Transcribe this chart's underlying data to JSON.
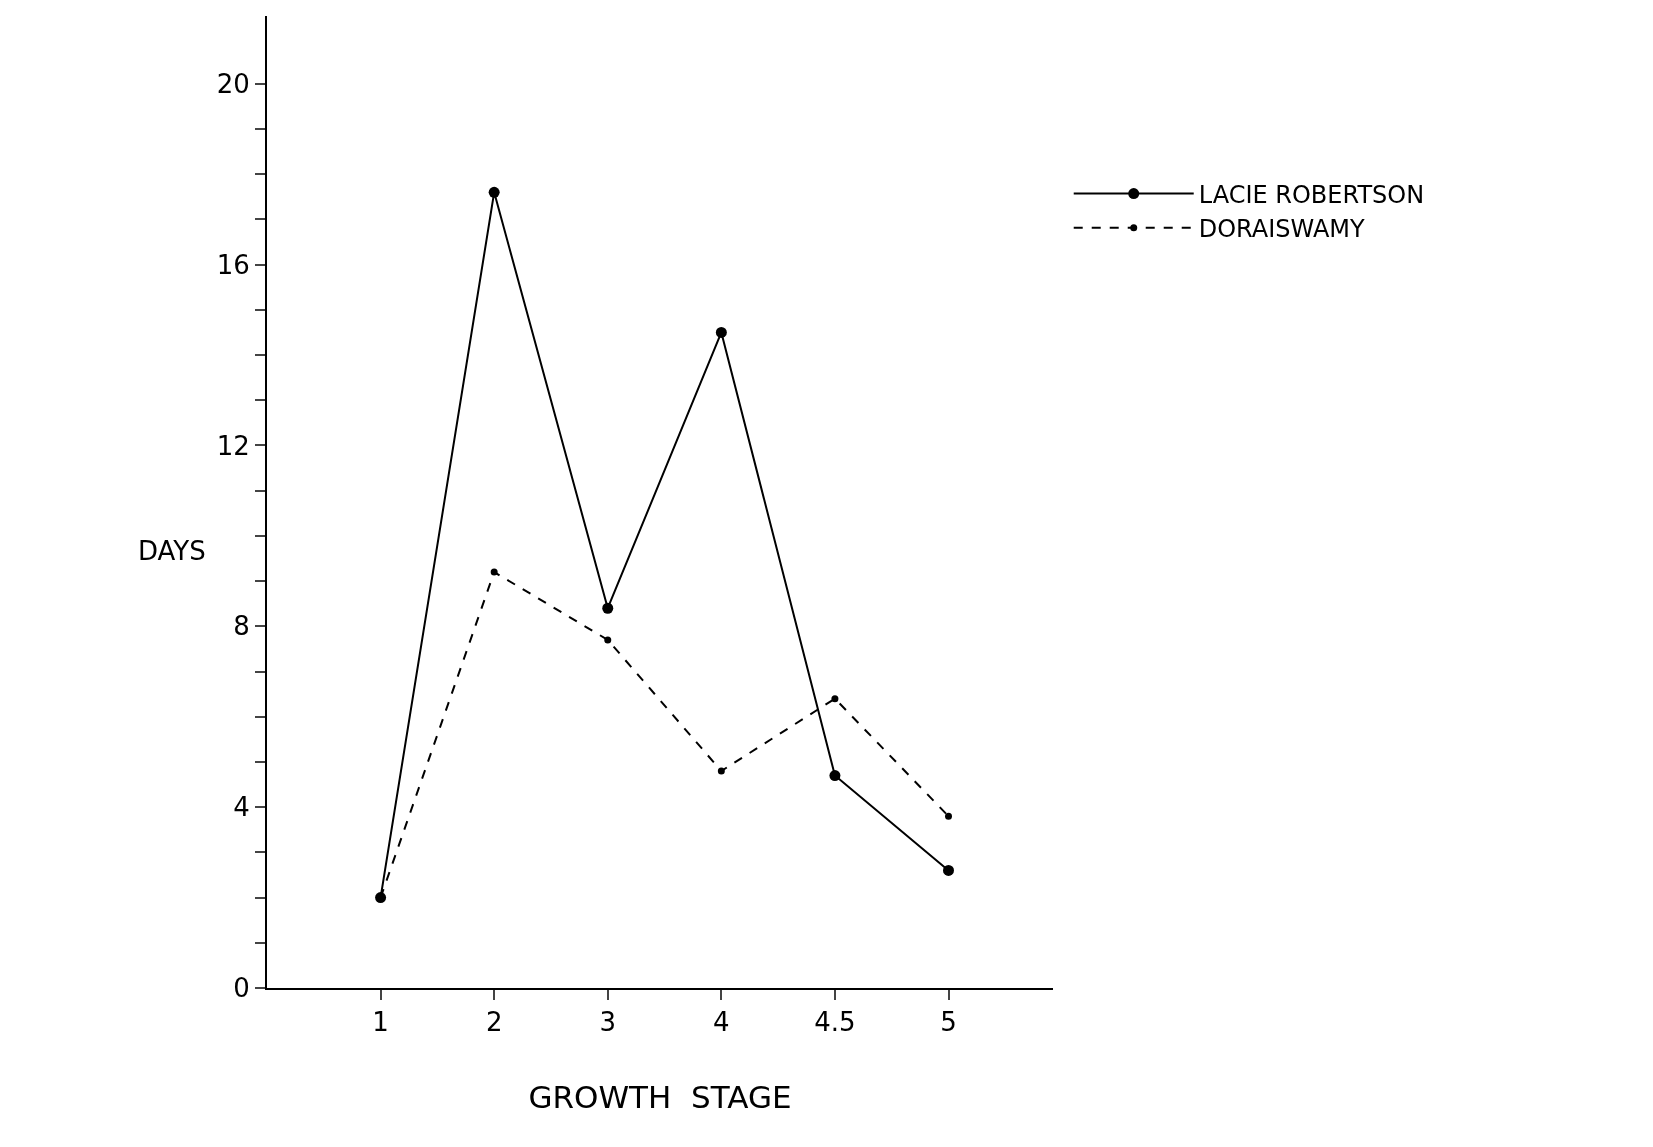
{
  "chart_data": {
    "type": "line",
    "xlabel": "GROWTH  STAGE",
    "ylabel": "DAYS",
    "categories": [
      "1",
      "2",
      "3",
      "4",
      "4.5",
      "5"
    ],
    "series": [
      {
        "name": "LACIE ROBERTSON",
        "color": "#000000",
        "line_style": "solid",
        "values": [
          2.0,
          17.6,
          8.4,
          14.5,
          4.7,
          2.6
        ]
      },
      {
        "name": "DORAISWAMY",
        "color": "#000000",
        "line_style": "dashed",
        "values": [
          2.0,
          9.2,
          7.7,
          4.8,
          6.4,
          3.8
        ]
      }
    ],
    "ylim": [
      0,
      21.5
    ],
    "yticks": [
      0,
      {
        "value": 1,
        "label": null
      },
      {
        "value": 2,
        "label": null
      },
      {
        "value": 3,
        "label": null
      },
      4,
      {
        "value": 5,
        "label": null
      },
      {
        "value": 6,
        "label": null
      },
      {
        "value": 7,
        "label": null
      },
      8,
      {
        "value": 9,
        "label": null
      },
      {
        "value": 10,
        "label": null
      },
      {
        "value": 11,
        "label": null
      },
      12,
      {
        "value": 13,
        "label": null
      },
      {
        "value": 14,
        "label": null
      },
      {
        "value": 15,
        "label": null
      },
      16,
      {
        "value": 17,
        "label": null
      },
      {
        "value": 18,
        "label": null
      },
      {
        "value": 19,
        "label": null
      },
      20
    ],
    "marker": "circle",
    "legend": "top right"
  }
}
